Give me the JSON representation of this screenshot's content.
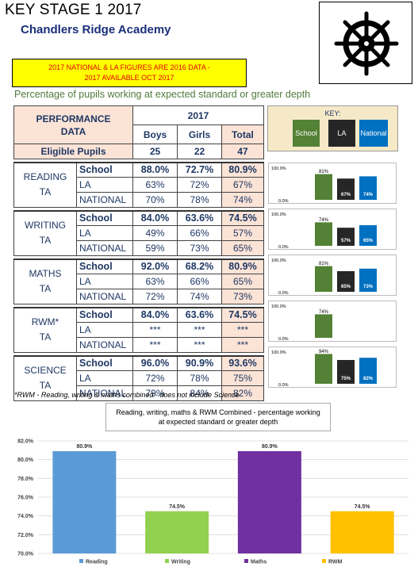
{
  "header": {
    "title": "KEY STAGE 1 2017",
    "school": "Chandlers Ridge Academy",
    "notice_line1": "2017 NATIONAL & LA FIGURES ARE 2016 DATA -",
    "notice_line2": "2017 AVAILABLE OCT 2017",
    "pct_heading": "Percentage of pupils working at expected standard or greater depth",
    "logo_icon": "ship-wheel-icon"
  },
  "table": {
    "perf_label_1": "PERFORMANCE",
    "perf_label_2": "DATA",
    "year": "2017",
    "col_boys": "Boys",
    "col_girls": "Girls",
    "col_total": "Total",
    "eligible_label": "Eligible Pupils",
    "eligible": {
      "boys": "25",
      "girls": "22",
      "total": "47"
    },
    "subjects": [
      {
        "name1": "READING",
        "name2": "TA",
        "rows": [
          {
            "label": "School",
            "boys": "88.0%",
            "girls": "72.7%",
            "total": "80.9%"
          },
          {
            "label": "LA",
            "boys": "63%",
            "girls": "72%",
            "total": "67%"
          },
          {
            "label": "NATIONAL",
            "boys": "70%",
            "girls": "78%",
            "total": "74%"
          }
        ]
      },
      {
        "name1": "WRITING",
        "name2": "TA",
        "rows": [
          {
            "label": "School",
            "boys": "84.0%",
            "girls": "63.6%",
            "total": "74.5%"
          },
          {
            "label": "LA",
            "boys": "49%",
            "girls": "66%",
            "total": "57%"
          },
          {
            "label": "NATIONAL",
            "boys": "59%",
            "girls": "73%",
            "total": "65%"
          }
        ]
      },
      {
        "name1": "MATHS",
        "name2": "TA",
        "rows": [
          {
            "label": "School",
            "boys": "92.0%",
            "girls": "68.2%",
            "total": "80.9%"
          },
          {
            "label": "LA",
            "boys": "63%",
            "girls": "66%",
            "total": "65%"
          },
          {
            "label": "NATIONAL",
            "boys": "72%",
            "girls": "74%",
            "total": "73%"
          }
        ]
      },
      {
        "name1": "RWM*",
        "name2": "TA",
        "rows": [
          {
            "label": "School",
            "boys": "84.0%",
            "girls": "63.6%",
            "total": "74.5%"
          },
          {
            "label": "LA",
            "boys": "***",
            "girls": "***",
            "total": "***"
          },
          {
            "label": "NATIONAL",
            "boys": "***",
            "girls": "***",
            "total": "***"
          }
        ]
      },
      {
        "name1": "SCIENCE",
        "name2": "TA",
        "rows": [
          {
            "label": "School",
            "boys": "96.0%",
            "girls": "90.9%",
            "total": "93.6%"
          },
          {
            "label": "LA",
            "boys": "72%",
            "girls": "78%",
            "total": "75%"
          },
          {
            "label": "NATIONAL",
            "boys": "79%",
            "girls": "84%",
            "total": "82%"
          }
        ]
      }
    ]
  },
  "key": {
    "title": "KEY:",
    "items": [
      {
        "label": "School",
        "color": "#538135"
      },
      {
        "label": "LA",
        "color": "#262626"
      },
      {
        "label": "National",
        "color": "#0070c0"
      }
    ]
  },
  "footnote": "*RWM - Reading, writing & maths combined - does not include Science",
  "chart_data": [
    {
      "type": "bar",
      "subject": "READING",
      "categories": [
        "School",
        "LA",
        "National"
      ],
      "values": [
        81,
        67,
        74
      ],
      "labels": [
        "81%",
        "67%",
        "74%"
      ],
      "ylim": [
        0,
        100
      ],
      "ytick_labels": [
        "0.0%",
        "100.0%"
      ],
      "colors": [
        "#538135",
        "#262626",
        "#0070c0"
      ]
    },
    {
      "type": "bar",
      "subject": "WRITING",
      "categories": [
        "School",
        "LA",
        "National"
      ],
      "values": [
        74,
        57,
        65
      ],
      "labels": [
        "74%",
        "57%",
        "65%"
      ],
      "ylim": [
        0,
        100
      ],
      "ytick_labels": [
        "0.0%",
        "100.0%"
      ],
      "colors": [
        "#538135",
        "#262626",
        "#0070c0"
      ]
    },
    {
      "type": "bar",
      "subject": "MATHS",
      "categories": [
        "School",
        "LA",
        "National"
      ],
      "values": [
        81,
        65,
        73
      ],
      "labels": [
        "81%",
        "65%",
        "73%"
      ],
      "ylim": [
        0,
        100
      ],
      "ytick_labels": [
        "0.0%",
        "100.0%"
      ],
      "colors": [
        "#538135",
        "#262626",
        "#0070c0"
      ]
    },
    {
      "type": "bar",
      "subject": "RWM",
      "categories": [
        "School"
      ],
      "values": [
        74
      ],
      "labels": [
        "74%"
      ],
      "ylim": [
        0,
        100
      ],
      "ytick_labels": [
        "0.0%",
        "100.0%"
      ],
      "colors": [
        "#538135"
      ]
    },
    {
      "type": "bar",
      "subject": "SCIENCE",
      "categories": [
        "School",
        "LA",
        "National"
      ],
      "values": [
        94,
        75,
        82
      ],
      "labels": [
        "94%",
        "75%",
        "82%"
      ],
      "ylim": [
        0,
        100
      ],
      "ytick_labels": [
        "0.0%",
        "100.0%"
      ],
      "colors": [
        "#538135",
        "#262626",
        "#0070c0"
      ]
    },
    {
      "type": "bar",
      "title_line1": "Reading, writing, maths & RWM Combined - percentage working",
      "title_line2": "at expected standard or greater depth",
      "categories": [
        "Reading",
        "Writing",
        "Maths",
        "RWM"
      ],
      "values": [
        80.9,
        74.5,
        80.9,
        74.5
      ],
      "labels": [
        "80.9%",
        "74.5%",
        "80.9%",
        "74.5%"
      ],
      "colors": [
        "#5b9bd5",
        "#92d050",
        "#7030a0",
        "#ffc000"
      ],
      "ylim": [
        70,
        82
      ],
      "yticks": [
        70,
        72,
        74,
        76,
        78,
        80,
        82
      ],
      "ytick_labels": [
        "70.0%",
        "72.0%",
        "74.0%",
        "76.0%",
        "78.0%",
        "80.0%",
        "82.0%"
      ],
      "grid": true,
      "legend": "bottom"
    }
  ]
}
